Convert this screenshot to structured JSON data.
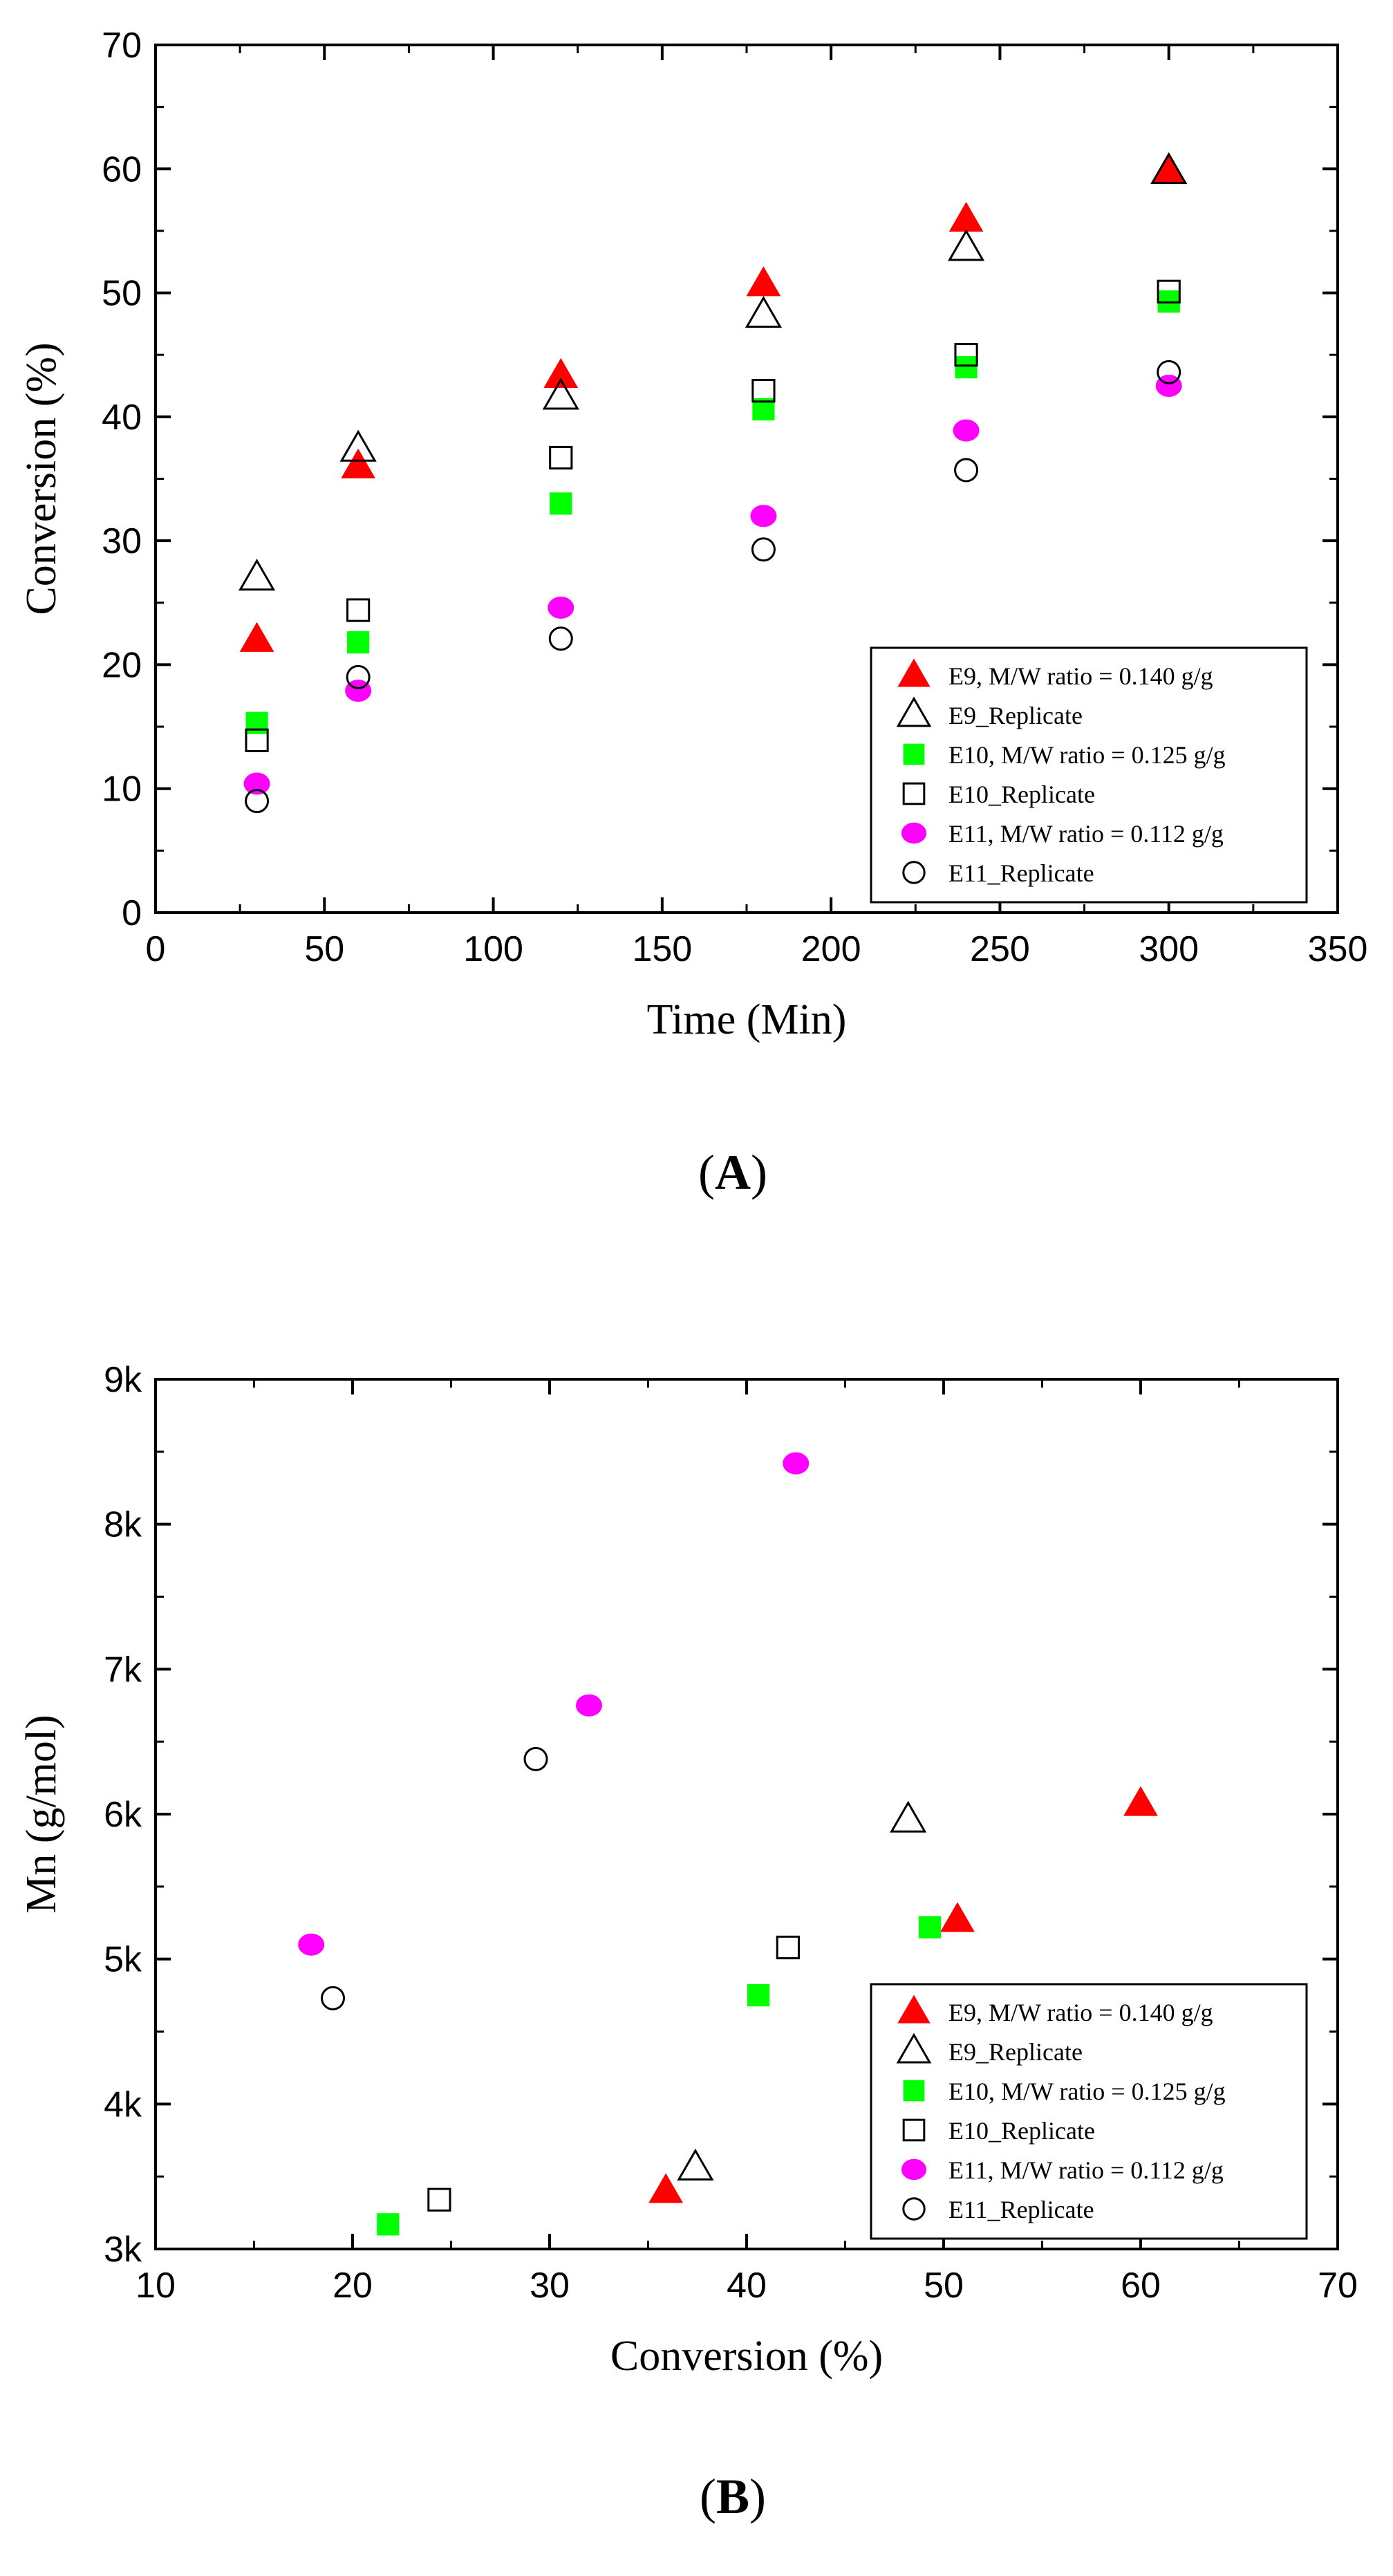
{
  "chart_data": [
    {
      "type": "scatter",
      "panel_label": "(A)",
      "xlabel": "Time (Min)",
      "ylabel": "Conversion (%)",
      "xlim": [
        0,
        350
      ],
      "ylim": [
        0,
        70
      ],
      "x_ticks": [
        0,
        50,
        100,
        150,
        200,
        250,
        300,
        350
      ],
      "x_tick_labels": [
        "0",
        "50",
        "100",
        "150",
        "200",
        "250",
        "300",
        "350"
      ],
      "y_ticks": [
        0,
        10,
        20,
        30,
        40,
        50,
        60,
        70
      ],
      "y_tick_labels": [
        "0",
        "10",
        "20",
        "30",
        "40",
        "50",
        "60",
        "70"
      ],
      "grid": false,
      "legend_position": "bottom-right",
      "series": [
        {
          "name": "E9, M/W ratio = 0.140 g/g",
          "marker": "triangle-filled",
          "color": "#ff0000",
          "points": [
            [
              30,
              22
            ],
            [
              60,
              36
            ],
            [
              120,
              43.3
            ],
            [
              180,
              50.7
            ],
            [
              240,
              55.9
            ],
            [
              300,
              59.9
            ]
          ]
        },
        {
          "name": "E9_Replicate",
          "marker": "triangle-open",
          "color": "#000000",
          "points": [
            [
              30,
              27
            ],
            [
              60,
              37.4
            ],
            [
              120,
              41.6
            ],
            [
              180,
              48.2
            ],
            [
              240,
              53.6
            ],
            [
              300,
              59.8
            ]
          ]
        },
        {
          "name": "E10, M/W ratio = 0.125 g/g",
          "marker": "square-filled",
          "color": "#00ff00",
          "points": [
            [
              30,
              15.3
            ],
            [
              60,
              21.8
            ],
            [
              120,
              33
            ],
            [
              180,
              40.6
            ],
            [
              240,
              44
            ],
            [
              300,
              49.3
            ]
          ]
        },
        {
          "name": "E10_Replicate",
          "marker": "square-open",
          "color": "#000000",
          "points": [
            [
              30,
              13.9
            ],
            [
              60,
              24.4
            ],
            [
              120,
              36.7
            ],
            [
              180,
              42.1
            ],
            [
              240,
              45
            ],
            [
              300,
              50.1
            ]
          ]
        },
        {
          "name": "E11, M/W ratio = 0.112 g/g",
          "marker": "circle-filled",
          "color": "#ff00ff",
          "points": [
            [
              30,
              10.4
            ],
            [
              60,
              17.9
            ],
            [
              120,
              24.6
            ],
            [
              180,
              32
            ],
            [
              240,
              38.9
            ],
            [
              300,
              42.5
            ]
          ]
        },
        {
          "name": "E11_Replicate",
          "marker": "circle-open",
          "color": "#000000",
          "points": [
            [
              30,
              9
            ],
            [
              60,
              19
            ],
            [
              120,
              22.1
            ],
            [
              180,
              29.3
            ],
            [
              240,
              35.7
            ],
            [
              300,
              43.6
            ]
          ]
        }
      ]
    },
    {
      "type": "scatter",
      "panel_label": "(B)",
      "xlabel": "Conversion (%)",
      "ylabel": "Mn (g/mol)",
      "xlim": [
        10,
        70
      ],
      "ylim": [
        3000,
        9000
      ],
      "x_ticks": [
        10,
        20,
        30,
        40,
        50,
        60,
        70
      ],
      "x_tick_labels": [
        "10",
        "20",
        "30",
        "40",
        "50",
        "60",
        "70"
      ],
      "y_ticks": [
        3000,
        4000,
        5000,
        6000,
        7000,
        8000,
        9000
      ],
      "y_tick_labels": [
        "3k",
        "4k",
        "5k",
        "6k",
        "7k",
        "8k",
        "9k"
      ],
      "grid": false,
      "legend_position": "bottom-right",
      "series": [
        {
          "name": "E9, M/W ratio = 0.140 g/g",
          "marker": "triangle-filled",
          "color": "#ff0000",
          "points": [
            [
              35.9,
              3400
            ],
            [
              50.7,
              5270
            ],
            [
              60,
              6070
            ]
          ]
        },
        {
          "name": "E9_Replicate",
          "marker": "triangle-open",
          "color": "#000000",
          "points": [
            [
              37.4,
              3560
            ],
            [
              48.2,
              5960
            ]
          ]
        },
        {
          "name": "E10, M/W ratio = 0.125 g/g",
          "marker": "square-filled",
          "color": "#00ff00",
          "points": [
            [
              21.8,
              3170
            ],
            [
              40.6,
              4750
            ],
            [
              49.3,
              5220
            ]
          ]
        },
        {
          "name": "E10_Replicate",
          "marker": "square-open",
          "color": "#000000",
          "points": [
            [
              24.4,
              3340
            ],
            [
              42.1,
              5080
            ]
          ]
        },
        {
          "name": "E11, M/W ratio = 0.112 g/g",
          "marker": "circle-filled",
          "color": "#ff00ff",
          "points": [
            [
              17.9,
              5100
            ],
            [
              32,
              6750
            ],
            [
              42.5,
              8420
            ]
          ]
        },
        {
          "name": "E11_Replicate",
          "marker": "circle-open",
          "color": "#000000",
          "points": [
            [
              19,
              4730
            ],
            [
              29.3,
              6380
            ]
          ]
        }
      ]
    }
  ]
}
